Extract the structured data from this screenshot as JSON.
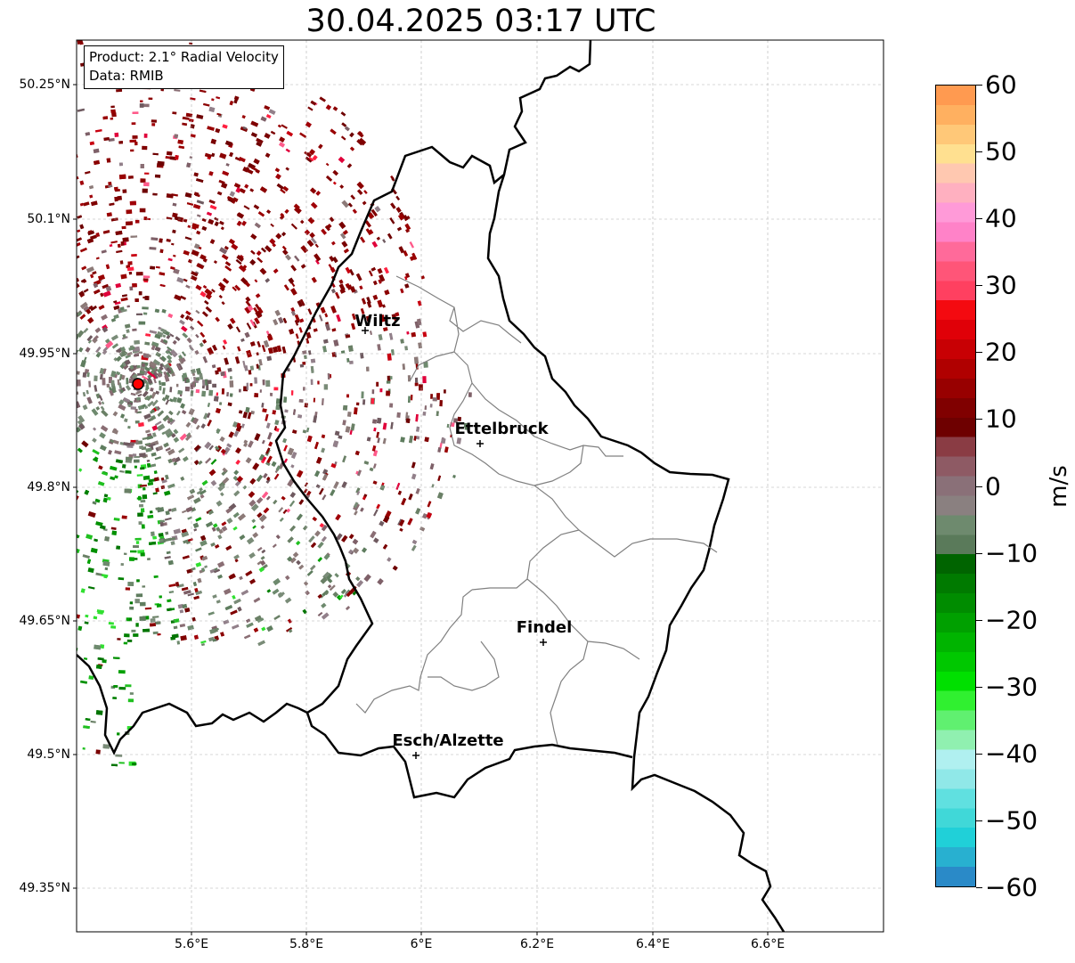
{
  "title": "30.04.2025 03:17 UTC",
  "info": {
    "product": "Product: 2.1° Radial Velocity",
    "data": "Data: RMIB"
  },
  "map": {
    "lat_ticks": [
      "50.25°N",
      "50.1°N",
      "49.95°N",
      "49.8°N",
      "49.65°N",
      "49.5°N",
      "49.35°N"
    ],
    "lon_ticks": [
      "5.6°E",
      "5.8°E",
      "6°E",
      "6.2°E",
      "6.4°E",
      "6.6°E"
    ],
    "cities": [
      {
        "name": "Wiltz"
      },
      {
        "name": "Ettelbruck"
      },
      {
        "name": "Findel"
      },
      {
        "name": "Esch/Alzette"
      }
    ],
    "radar_site_color": "#ff0000"
  },
  "colorbar": {
    "unit": "m/s",
    "range": [
      -60,
      60
    ],
    "tick_labels": [
      "60",
      "50",
      "40",
      "30",
      "20",
      "10",
      "0",
      "−10",
      "−20",
      "−30",
      "−40",
      "−50",
      "−60"
    ],
    "colors_top_to_bottom": [
      "#ff9a50",
      "#ffb060",
      "#ffc878",
      "#ffe090",
      "#ffc8b0",
      "#ffb0c0",
      "#ff9ad8",
      "#ff82c8",
      "#ff6a9a",
      "#ff5578",
      "#ff4060",
      "#f40a10",
      "#e00008",
      "#c80004",
      "#b00000",
      "#980000",
      "#800000",
      "#6e0000",
      "#8a3c44",
      "#8e5a64",
      "#8a7078",
      "#8a8080",
      "#6e8a6e",
      "#5a7a5a",
      "#006400",
      "#007a00",
      "#008c00",
      "#00a000",
      "#00b400",
      "#00c800",
      "#00e000",
      "#30f030",
      "#60f070",
      "#90f0b0",
      "#b0f0f0",
      "#90e8e8",
      "#60e0e0",
      "#40d8d8",
      "#20d0d8",
      "#28b0d0",
      "#2a8ac8"
    ]
  }
}
